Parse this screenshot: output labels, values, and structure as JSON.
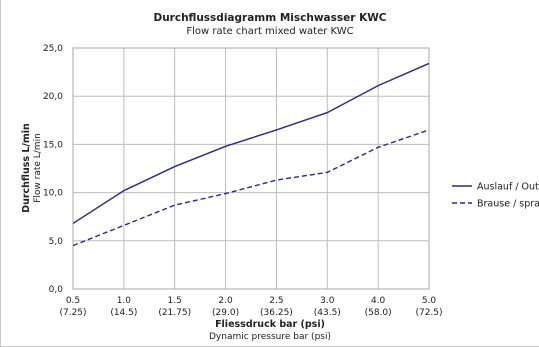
{
  "chart_data": {
    "type": "line",
    "title": "Durchflussdiagramm Mischwasser KWC",
    "subtitle": "Flow rate chart  mixed water KWC",
    "xlabel": "Fliessdruck bar (psi)",
    "xlabel_sub": "Dynamic pressure bar (psi)",
    "ylabel": "Durchfluss L/min",
    "ylabel_sub": "Flow rate L/min",
    "x_tick_labels": [
      "0.5",
      "1.0",
      "1.5",
      "2.0",
      "2.5",
      "3.0",
      "4.0",
      "5.0"
    ],
    "x_tick_labels_psi": [
      "(7.25)",
      "(14.5)",
      "(21.75)",
      "(29.0)",
      "(36.25)",
      "(43.5)",
      "(58.0)",
      "(72.5)"
    ],
    "y_ticks": [
      0,
      5,
      10,
      15,
      20,
      25
    ],
    "y_tick_labels": [
      "0,0",
      "5,0",
      "10,0",
      "15,0",
      "20,0",
      "25,0"
    ],
    "ylim": [
      0,
      25
    ],
    "grid": true,
    "legend_position": "right",
    "series": [
      {
        "name": "Auslauf / Outlet",
        "style": "solid",
        "color": "#2b2a7e",
        "values": [
          6.8,
          10.2,
          12.7,
          14.8,
          16.5,
          18.3,
          21.1,
          23.4
        ]
      },
      {
        "name": "Brause / spray",
        "style": "dashed",
        "color": "#2b2a7e",
        "values": [
          4.5,
          6.6,
          8.7,
          9.9,
          11.3,
          12.1,
          14.7,
          16.5
        ]
      }
    ]
  }
}
